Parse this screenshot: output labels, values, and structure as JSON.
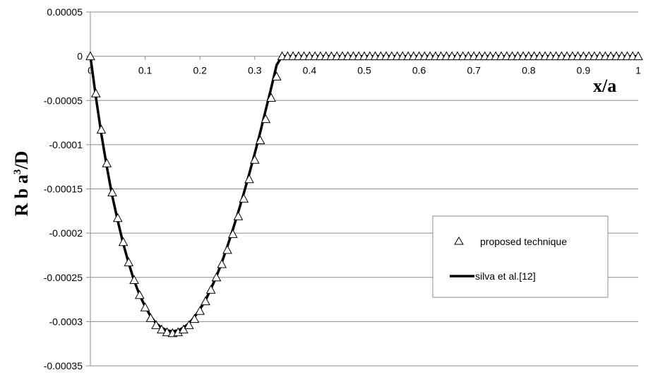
{
  "chart_data": {
    "type": "line",
    "xlabel": "x/a",
    "ylabel_main": "R b a",
    "ylabel_sup": "3",
    "ylabel_tail": "/D",
    "xlim": [
      0,
      1
    ],
    "ylim": [
      -0.00035,
      5e-05
    ],
    "x_ticks": [
      "0",
      "0.1",
      "0.2",
      "0.3",
      "0.4",
      "0.5",
      "0.6",
      "0.7",
      "0.8",
      "0.9",
      "1"
    ],
    "y_ticks": [
      5e-05,
      0,
      -5e-05,
      -0.0001,
      -0.00015,
      -0.0002,
      -0.00025,
      -0.0003,
      -0.00035
    ],
    "y_tick_labels": [
      "0.00005",
      "0",
      "-0.00005",
      "-0.0001",
      "-0.00015",
      "-0.0002",
      "-0.00025",
      "-0.0003",
      "-0.00035"
    ],
    "grid": "horizontal",
    "legend": "right",
    "series": [
      {
        "name": "proposed technique",
        "marker": "triangle-open",
        "x": [
          0,
          0.01,
          0.02,
          0.03,
          0.04,
          0.05,
          0.06,
          0.07,
          0.08,
          0.09,
          0.1,
          0.11,
          0.12,
          0.13,
          0.14,
          0.15,
          0.16,
          0.17,
          0.18,
          0.19,
          0.2,
          0.21,
          0.22,
          0.23,
          0.24,
          0.25,
          0.26,
          0.27,
          0.28,
          0.29,
          0.3,
          0.31,
          0.32,
          0.33,
          0.34,
          0.35,
          0.36,
          0.37,
          0.38,
          0.39,
          0.4,
          0.41,
          0.42,
          0.43,
          0.44,
          0.45,
          0.46,
          0.47,
          0.48,
          0.49,
          0.5,
          0.51,
          0.52,
          0.53,
          0.54,
          0.55,
          0.56,
          0.57,
          0.58,
          0.59,
          0.6,
          0.61,
          0.62,
          0.63,
          0.64,
          0.65,
          0.66,
          0.67,
          0.68,
          0.69,
          0.7,
          0.71,
          0.72,
          0.73,
          0.74,
          0.75,
          0.76,
          0.77,
          0.78,
          0.79,
          0.8,
          0.81,
          0.82,
          0.83,
          0.84,
          0.85,
          0.86,
          0.87,
          0.88,
          0.89,
          0.9,
          0.91,
          0.92,
          0.93,
          0.94,
          0.95,
          0.96,
          0.97,
          0.98,
          0.99,
          1.0
        ],
        "y": [
          0,
          -4.2e-05,
          -8.3e-05,
          -0.000121,
          -0.000154,
          -0.000183,
          -0.00021,
          -0.000233,
          -0.000253,
          -0.00027,
          -0.000284,
          -0.000296,
          -0.000304,
          -0.000309,
          -0.000312,
          -0.000313,
          -0.000312,
          -0.000309,
          -0.000304,
          -0.000297,
          -0.000288,
          -0.000277,
          -0.000264,
          -0.00025,
          -0.000235,
          -0.000219,
          -0.000201,
          -0.000181,
          -0.000161,
          -0.000139,
          -0.000117,
          -9.5e-05,
          -7.1e-05,
          -4.7e-05,
          -2.3e-05,
          0,
          0,
          0,
          0,
          0,
          0,
          0,
          0,
          0,
          0,
          0,
          0,
          0,
          0,
          0,
          0,
          0,
          0,
          0,
          0,
          0,
          0,
          0,
          0,
          0,
          0,
          0,
          0,
          0,
          0,
          0,
          0,
          0,
          0,
          0,
          0,
          0,
          0,
          0,
          0,
          0,
          0,
          0,
          0,
          0,
          0,
          0,
          0,
          0,
          0,
          0,
          0,
          0,
          0,
          0,
          0,
          0,
          0,
          0,
          0,
          0,
          0,
          0,
          0,
          0,
          0
        ]
      },
      {
        "name": "silva et al.[12]",
        "marker": "line",
        "x": [
          0,
          0.01,
          0.02,
          0.03,
          0.04,
          0.05,
          0.06,
          0.07,
          0.08,
          0.09,
          0.1,
          0.11,
          0.12,
          0.13,
          0.14,
          0.15,
          0.16,
          0.17,
          0.18,
          0.19,
          0.2,
          0.21,
          0.22,
          0.23,
          0.24,
          0.25,
          0.26,
          0.27,
          0.28,
          0.29,
          0.3,
          0.31,
          0.32,
          0.33,
          0.34,
          0.35,
          0.36,
          0.37,
          0.38,
          0.39,
          0.4,
          0.41,
          0.42,
          0.43,
          0.44,
          1.0
        ],
        "y": [
          0,
          -4.6e-05,
          -8.8e-05,
          -0.000125,
          -0.000158,
          -0.000186,
          -0.000212,
          -0.000234,
          -0.000254,
          -0.00027,
          -0.000283,
          -0.000294,
          -0.000302,
          -0.000307,
          -0.00031,
          -0.000311,
          -0.00031,
          -0.000307,
          -0.000302,
          -0.000295,
          -0.000286,
          -0.000276,
          -0.000263,
          -0.000249,
          -0.000233,
          -0.000215,
          -0.000196,
          -0.000176,
          -0.000155,
          -0.000133,
          -0.00011,
          -8.6e-05,
          -6.1e-05,
          -3.6e-05,
          -1e-05,
          0,
          0,
          0,
          0,
          0,
          0,
          0,
          0,
          0,
          0,
          0
        ]
      }
    ]
  }
}
